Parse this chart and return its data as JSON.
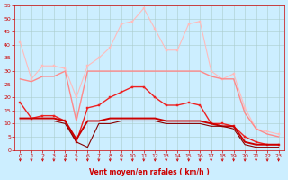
{
  "background_color": "#cceeff",
  "grid_color": "#aacccc",
  "xlabel": "Vent moyen/en rafales ( km/h )",
  "xlim": [
    -0.5,
    23.5
  ],
  "ylim": [
    0,
    55
  ],
  "yticks": [
    0,
    5,
    10,
    15,
    20,
    25,
    30,
    35,
    40,
    45,
    50,
    55
  ],
  "xticks": [
    0,
    1,
    2,
    3,
    4,
    5,
    6,
    7,
    8,
    9,
    10,
    11,
    12,
    13,
    14,
    15,
    16,
    17,
    18,
    19,
    20,
    21,
    22,
    23
  ],
  "series": [
    {
      "x": [
        0,
        1,
        2,
        3,
        4,
        5,
        6,
        7,
        8,
        9,
        10,
        11,
        12,
        13,
        14,
        15,
        16,
        17,
        18,
        19,
        20,
        21,
        22,
        23
      ],
      "y": [
        41,
        27,
        32,
        32,
        31,
        20,
        32,
        35,
        39,
        48,
        49,
        54,
        46,
        38,
        38,
        48,
        49,
        30,
        27,
        29,
        16,
        8,
        7,
        6
      ],
      "color": "#ffbbbb",
      "linewidth": 0.8,
      "marker": "s",
      "markersize": 1.8
    },
    {
      "x": [
        0,
        1,
        2,
        3,
        4,
        5,
        6,
        7,
        8,
        9,
        10,
        11,
        12,
        13,
        14,
        15,
        16,
        17,
        18,
        19,
        20,
        21,
        22,
        23
      ],
      "y": [
        27,
        26,
        28,
        28,
        30,
        11,
        30,
        30,
        30,
        30,
        30,
        30,
        30,
        30,
        30,
        30,
        30,
        28,
        27,
        27,
        14,
        8,
        6,
        5
      ],
      "color": "#ff8888",
      "linewidth": 1.0,
      "marker": null,
      "markersize": 0
    },
    {
      "x": [
        0,
        1,
        2,
        3,
        4,
        5,
        6,
        7,
        8,
        9,
        10,
        11,
        12,
        13,
        14,
        15,
        16,
        17,
        18,
        19,
        20,
        21,
        22,
        23
      ],
      "y": [
        18,
        12,
        13,
        13,
        11,
        3,
        16,
        17,
        20,
        22,
        24,
        24,
        20,
        17,
        17,
        18,
        17,
        10,
        10,
        9,
        5,
        3,
        2,
        2
      ],
      "color": "#ee2222",
      "linewidth": 1.0,
      "marker": "s",
      "markersize": 1.8
    },
    {
      "x": [
        0,
        1,
        2,
        3,
        4,
        5,
        6,
        7,
        8,
        9,
        10,
        11,
        12,
        13,
        14,
        15,
        16,
        17,
        18,
        19,
        20,
        21,
        22,
        23
      ],
      "y": [
        12,
        12,
        12,
        12,
        11,
        4,
        11,
        11,
        12,
        12,
        12,
        12,
        12,
        11,
        11,
        11,
        11,
        10,
        9,
        9,
        3,
        2,
        2,
        2
      ],
      "color": "#cc0000",
      "linewidth": 1.4,
      "marker": null,
      "markersize": 0
    },
    {
      "x": [
        0,
        1,
        2,
        3,
        4,
        5,
        6,
        7,
        8,
        9,
        10,
        11,
        12,
        13,
        14,
        15,
        16,
        17,
        18,
        19,
        20,
        21,
        22,
        23
      ],
      "y": [
        11,
        11,
        11,
        11,
        10,
        3,
        1,
        10,
        10,
        11,
        11,
        11,
        11,
        10,
        10,
        10,
        10,
        9,
        9,
        8,
        2,
        1,
        1,
        1
      ],
      "color": "#880000",
      "linewidth": 0.8,
      "marker": null,
      "markersize": 0
    }
  ],
  "arrow_color": "#cc0000",
  "tick_color": "#cc0000",
  "label_color": "#cc0000"
}
